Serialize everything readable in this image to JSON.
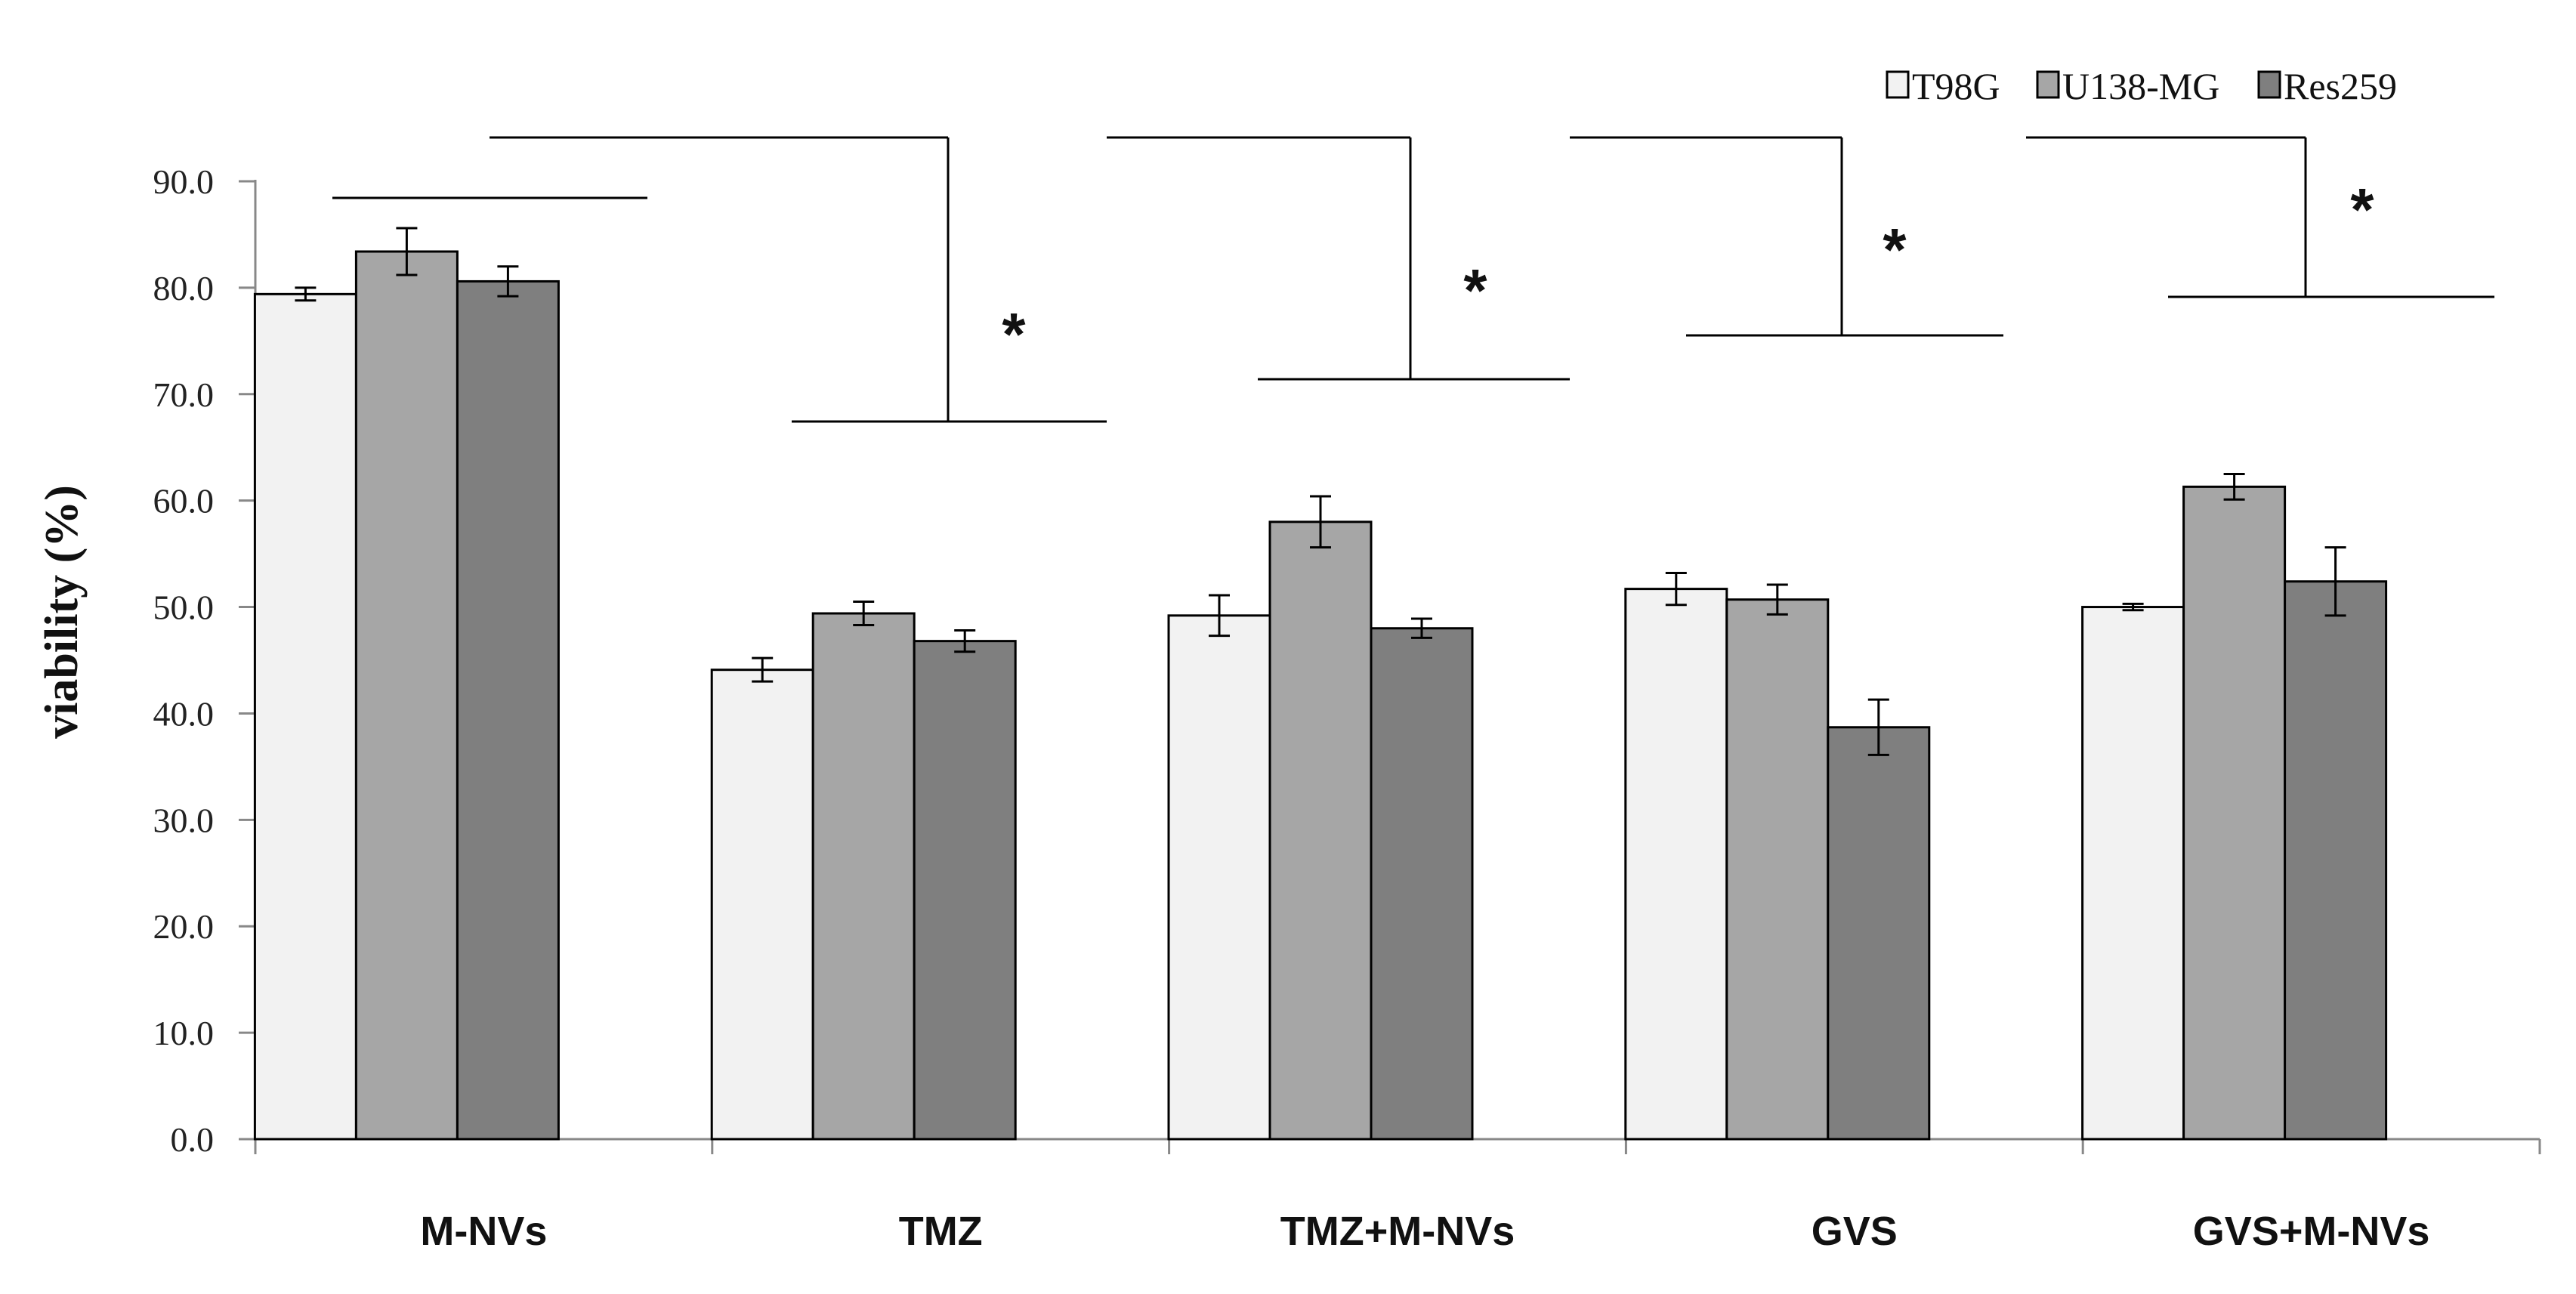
{
  "chart_data": {
    "type": "bar",
    "title": "",
    "xlabel": "",
    "ylabel": "viability (%)",
    "ylim": [
      0,
      90
    ],
    "yticks": [
      "0.0",
      "10.0",
      "20.0",
      "30.0",
      "40.0",
      "50.0",
      "60.0",
      "70.0",
      "80.0",
      "90.0"
    ],
    "categories": [
      "M-NVs",
      "TMZ",
      "TMZ+M-NVs",
      "GVS",
      "GVS+M-NVs"
    ],
    "series": [
      {
        "name": "T98G",
        "color": "#f2f2f2",
        "values": [
          79.4,
          44.1,
          49.2,
          51.7,
          50.0
        ],
        "errors": [
          0.6,
          1.1,
          1.9,
          1.5,
          0.3
        ]
      },
      {
        "name": "U138-MG",
        "color": "#a6a6a6",
        "values": [
          83.4,
          49.4,
          58.0,
          50.7,
          61.3
        ],
        "errors": [
          2.2,
          1.1,
          2.4,
          1.4,
          1.2
        ]
      },
      {
        "name": "Res259",
        "color": "#7f7f7f",
        "values": [
          80.6,
          46.8,
          48.0,
          38.7,
          52.4
        ],
        "errors": [
          1.4,
          1.0,
          0.9,
          2.6,
          3.2
        ]
      }
    ],
    "legend_position": "top-right",
    "significance_marker": "*",
    "significance_comparisons": [
      "TMZ",
      "TMZ+M-NVs",
      "GVS",
      "GVS+M-NVs"
    ],
    "grid": false
  }
}
